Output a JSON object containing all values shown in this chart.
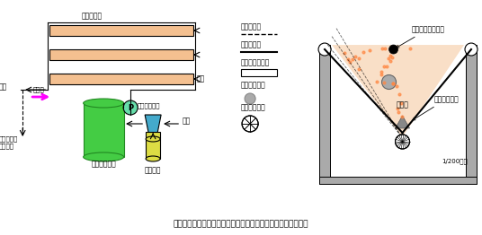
{
  "title": "図１　開発した循環式システムの模式図及び栽培ベッドの構造",
  "fig_width": 5.36,
  "fig_height": 2.62,
  "dpi": 100,
  "bg_color": "#ffffff",
  "bed_color": "#f4c090",
  "bed_border": "#000000",
  "tank_color": "#44cc44",
  "tank_border": "#228822",
  "pump_color": "#66ddaa",
  "injector_color": "#44aacc",
  "conc_color": "#dddd44",
  "arrow_color": "#000000",
  "magenta_arrow": "#ff00ff",
  "label_栽培ベッド": "栽培ベッド",
  "label_給液": "給液",
  "label_排液": "排液",
  "label_循環式": "循環式",
  "label_希釈液の調製": "希釈液の調製",
  "label_原水": "原水",
  "label_掛け流しの": "掛け流しの",
  "label_システム": "システム",
  "label_培養液タンク": "培養液タンク",
  "label_濃厚原液": "濃厚原液",
  "label_P": "P",
  "legend_ラブシート": "ラブシート",
  "legend_白黒マルチ": "白黒マルチ",
  "legend_発泡スチロール": "発泡スチロール",
  "legend_温湯チューブ": "温湯チューブ",
  "legend_コルゲート管": "コルゲート管",
  "right_ドリップチューブ": "ドリップチューブ",
  "right_培地": "培　地",
  "right_Lアングル": "Ｌ字アングル",
  "right_勾配": "1/200勾配"
}
